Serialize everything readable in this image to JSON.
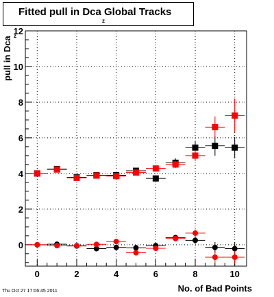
{
  "title": "Fitted pull in Dca",
  "title_suffix": "Global Tracks",
  "title_subscript": "z",
  "ylabel": "pull in Dca",
  "ylabel_subscript": "z",
  "xlabel": "No. of Bad Points",
  "timestamp": "Thu Oct 27 17:06:45 2011",
  "chart_data": {
    "type": "scatter",
    "title": "Fitted pull in Dca z Global Tracks",
    "xlabel": "No. of Bad Points",
    "ylabel": "pull in Dca z",
    "xlim": [
      -0.6,
      10.6
    ],
    "ylim": [
      -1.2,
      12
    ],
    "xticks": [
      0,
      2,
      4,
      6,
      8,
      10
    ],
    "yticks": [
      0,
      2,
      4,
      6,
      8,
      10,
      12
    ],
    "grid": true,
    "series": [
      {
        "marker": "square",
        "color": "#000000",
        "x": [
          0,
          1,
          2,
          3,
          4,
          5,
          6,
          7,
          8,
          9,
          10
        ],
        "y": [
          4.0,
          4.25,
          3.78,
          3.9,
          3.9,
          4.15,
          3.72,
          4.6,
          5.45,
          5.55,
          5.45
        ],
        "yerr": [
          0.08,
          0.1,
          0.1,
          0.1,
          0.12,
          0.12,
          0.15,
          0.25,
          0.35,
          0.55,
          0.6
        ]
      },
      {
        "marker": "square",
        "color": "#ff0000",
        "x": [
          0,
          1,
          2,
          3,
          4,
          5,
          6,
          7,
          8,
          9,
          10
        ],
        "y": [
          4.0,
          4.22,
          3.75,
          3.88,
          3.85,
          4.05,
          4.28,
          4.5,
          5.0,
          6.6,
          7.25
        ],
        "yerr": [
          0.06,
          0.08,
          0.08,
          0.1,
          0.1,
          0.12,
          0.15,
          0.2,
          0.3,
          0.6,
          0.95
        ]
      },
      {
        "marker": "circle",
        "color": "#000000",
        "x": [
          0,
          1,
          2,
          3,
          4,
          5,
          6,
          7,
          8,
          9,
          10
        ],
        "y": [
          0.0,
          0.03,
          -0.07,
          -0.22,
          -0.15,
          -0.17,
          -0.05,
          0.4,
          0.25,
          -0.15,
          -0.22
        ],
        "yerr": [
          0.05,
          0.06,
          0.06,
          0.08,
          0.1,
          0.1,
          0.12,
          0.15,
          0.2,
          0.3,
          0.35
        ]
      },
      {
        "marker": "circle",
        "color": "#ff0000",
        "x": [
          0,
          1,
          2,
          3,
          4,
          5,
          6,
          7,
          8,
          9,
          10
        ],
        "y": [
          0.0,
          -0.05,
          -0.05,
          0.02,
          0.18,
          -0.45,
          -0.2,
          0.35,
          0.65,
          -0.7,
          -0.7
        ],
        "yerr": [
          0.05,
          0.05,
          0.06,
          0.08,
          0.1,
          0.1,
          0.12,
          0.15,
          0.2,
          0.3,
          0.35
        ]
      }
    ]
  }
}
